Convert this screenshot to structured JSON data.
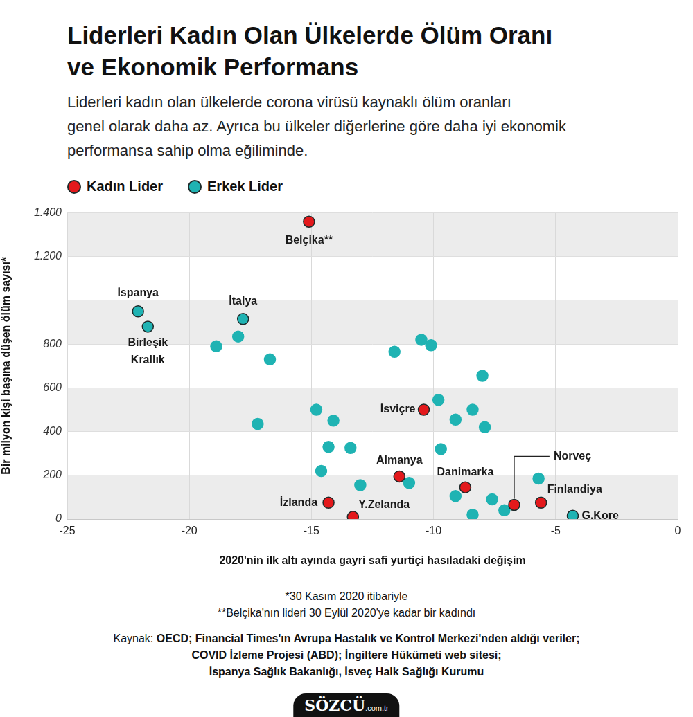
{
  "chart_data": {
    "type": "scatter",
    "title": "Liderleri Kadın Olan Ülkelerde Ölüm Oranı\nve Ekonomik Performans",
    "subtitle": "Liderleri kadın olan ülkelerde corona virüsü kaynaklı ölüm oranları\ngenel olarak daha az. Ayrıca bu ülkeler diğerlerine göre daha iyi ekonomik\nperformansa sahip olma eğiliminde.",
    "x_label": "2020'nin ilk altı ayında gayri safi yurtiçi hasıladaki değişim",
    "y_label": "Bir milyon kişi başına düşen ölüm sayısı*",
    "xlim": [
      -25,
      0
    ],
    "xticks": [
      -25,
      -20,
      -15,
      -10,
      -5,
      0
    ],
    "ylim": [
      0,
      1400
    ],
    "yticks": [
      0,
      200,
      400,
      600,
      800,
      {
        "value": 1200,
        "label": "1.200"
      },
      {
        "value": 1400,
        "label": "1.400"
      }
    ],
    "grid": true,
    "legend": "top",
    "series": [
      {
        "name": "Kadın Lider",
        "color": "#e3191c",
        "marker": "circle",
        "values": [
          {
            "x": -15.1,
            "y": 1360,
            "label": "Belçika**"
          },
          {
            "x": -10.4,
            "y": 500,
            "label": "İsviçre"
          },
          {
            "x": -11.4,
            "y": 195,
            "label": "Almanya"
          },
          {
            "x": -8.7,
            "y": 145,
            "label": "Danimarka"
          },
          {
            "x": -14.3,
            "y": 75,
            "label": "İzlanda"
          },
          {
            "x": -13.3,
            "y": 10,
            "label": "Y.Zelanda"
          },
          {
            "x": -6.7,
            "y": 65,
            "label": "Norveç"
          },
          {
            "x": -5.6,
            "y": 75,
            "label": "Finlandiya"
          }
        ]
      },
      {
        "name": "Erkek Lider",
        "color": "#1fb3b3",
        "marker": "circle",
        "values": [
          {
            "x": -22.1,
            "y": 950,
            "label": "İspanya"
          },
          {
            "x": -21.7,
            "y": 880,
            "label": "Birleşik Krallık"
          },
          {
            "x": -17.8,
            "y": 915,
            "label": "İtalya"
          },
          {
            "x": -4.3,
            "y": 15,
            "label": "G.Kore"
          },
          {
            "x": -18.9,
            "y": 790
          },
          {
            "x": -18.0,
            "y": 835
          },
          {
            "x": -16.7,
            "y": 730
          },
          {
            "x": -17.2,
            "y": 435
          },
          {
            "x": -14.8,
            "y": 500
          },
          {
            "x": -14.1,
            "y": 450
          },
          {
            "x": -14.3,
            "y": 330
          },
          {
            "x": -13.4,
            "y": 325
          },
          {
            "x": -14.6,
            "y": 220
          },
          {
            "x": -13.0,
            "y": 155
          },
          {
            "x": -11.6,
            "y": 765
          },
          {
            "x": -11.0,
            "y": 165
          },
          {
            "x": -10.5,
            "y": 820
          },
          {
            "x": -10.1,
            "y": 795
          },
          {
            "x": -9.8,
            "y": 545
          },
          {
            "x": -9.7,
            "y": 320
          },
          {
            "x": -9.1,
            "y": 455
          },
          {
            "x": -9.1,
            "y": 105
          },
          {
            "x": -8.4,
            "y": 500
          },
          {
            "x": -8.4,
            "y": 20
          },
          {
            "x": -8.0,
            "y": 655
          },
          {
            "x": -7.9,
            "y": 420
          },
          {
            "x": -7.6,
            "y": 90
          },
          {
            "x": -7.1,
            "y": 40
          },
          {
            "x": -5.7,
            "y": 185
          }
        ]
      }
    ],
    "footnotes": [
      "*30 Kasım 2020 itibariyle",
      "**Belçika'nın lideri 30 Eylül 2020'ye kadar bir kadındı"
    ],
    "source_label": "Kaynak:",
    "source_lines": [
      "OECD; Financial Times'ın Avrupa Hastalık ve Kontrol Merkezi'nden aldığı veriler;",
      "COVID İzleme Projesi (ABD); İngiltere Hükümeti web sitesi;",
      "İspanya Sağlık Bakanlığı, İsveç Halk Sağlığı Kurumu"
    ],
    "logo": "SÖZCÜ",
    "logo_suffix": ".com.tr"
  }
}
